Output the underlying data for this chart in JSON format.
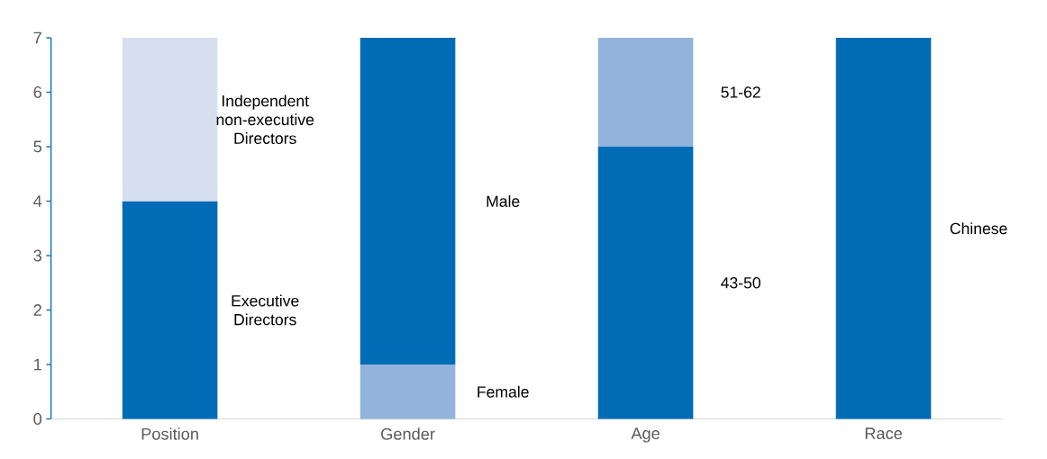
{
  "chart_data": {
    "type": "bar",
    "stacked": true,
    "categories": [
      "Position",
      "Gender",
      "Age",
      "Race"
    ],
    "series": [
      {
        "name": "Executive Directors",
        "color": "#006cb5",
        "values": [
          4,
          null,
          null,
          null
        ]
      },
      {
        "name": "Independent non-executive Directors",
        "color": "#d6dff0",
        "values": [
          3,
          null,
          null,
          null
        ]
      },
      {
        "name": "Female",
        "color": "#92b4dc",
        "values": [
          null,
          1,
          null,
          null
        ]
      },
      {
        "name": "Male",
        "color": "#006cb5",
        "values": [
          null,
          6,
          null,
          null
        ]
      },
      {
        "name": "43-50",
        "color": "#006cb5",
        "values": [
          null,
          null,
          5,
          null
        ]
      },
      {
        "name": "51-62",
        "color": "#92b4dc",
        "values": [
          null,
          null,
          2,
          null
        ]
      },
      {
        "name": "Chinese",
        "color": "#006cb5",
        "values": [
          null,
          null,
          null,
          7
        ]
      }
    ],
    "ylim": [
      0,
      7
    ],
    "yticks": [
      0,
      1,
      2,
      3,
      4,
      5,
      6,
      7
    ]
  }
}
